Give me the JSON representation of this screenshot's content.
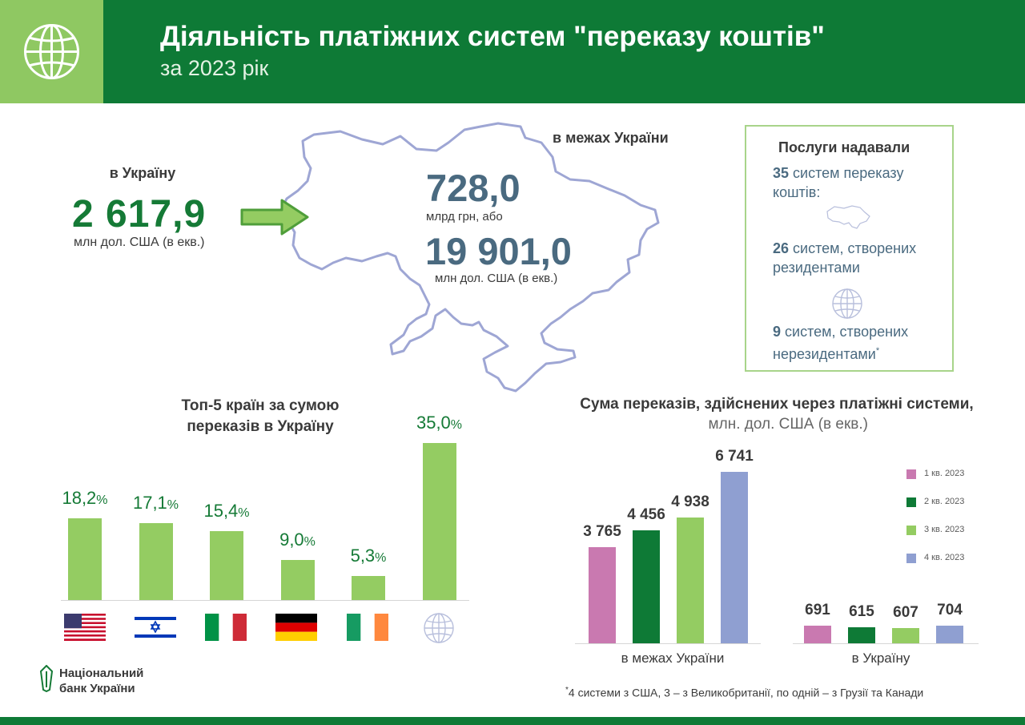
{
  "header": {
    "title": "Діяльність платіжних систем \"переказу коштів\"",
    "subtitle": "за 2023 рік",
    "icon": "globe-icon"
  },
  "to_ukraine": {
    "label": "в Україну",
    "value": "2 617,9",
    "unit": "млн дол. США (в екв.)"
  },
  "within_ukraine": {
    "label": "в межах України",
    "value_uah": "728,0",
    "unit_uah": "млрд грн, або",
    "value_usd": "19 901,0",
    "unit_usd": "млн дол. США (в екв.)"
  },
  "services": {
    "title": "Послуги надавали",
    "total_num": "35",
    "total_text": "систем переказу коштів:",
    "resident_num": "26",
    "resident_text": "систем, створених резидентами",
    "nonresident_num": "9",
    "nonresident_text": "систем, створених нерезидентами",
    "nonresident_mark": "*"
  },
  "colors": {
    "header_green": "#0e7a36",
    "light_green": "#94cc62",
    "q1": "#c979b0",
    "q2": "#0e7a36",
    "q3": "#94cc62",
    "q4": "#8f9fd1",
    "value_blue": "#4a6a80"
  },
  "chart_data": [
    {
      "type": "bar",
      "title": "Топ-5 країн за сумою переказів в Україну",
      "categories": [
        "USA",
        "Israel",
        "Italy",
        "Germany",
        "Ireland",
        "Other"
      ],
      "category_icons": [
        "flag-usa-icon",
        "flag-israel-icon",
        "flag-italy-icon",
        "flag-germany-icon",
        "flag-ireland-icon",
        "globe-icon"
      ],
      "values": [
        18.2,
        17.1,
        15.4,
        9.0,
        5.3,
        35.0
      ],
      "labels": [
        "18,2",
        "17,1",
        "15,4",
        "9,0",
        "5,3",
        "35,0"
      ],
      "unit": "%",
      "ylim": [
        0,
        35
      ]
    },
    {
      "type": "bar",
      "title": "Сума переказів, здійснених через платіжні системи,",
      "subtitle": "млн. дол. США (в екв.)",
      "categories": [
        "в межах України",
        "в Україну"
      ],
      "series": [
        {
          "name": "1 кв. 2023",
          "values": [
            3765,
            691
          ],
          "labels": [
            "3 765",
            "691"
          ]
        },
        {
          "name": "2 кв. 2023",
          "values": [
            4456,
            615
          ],
          "labels": [
            "4 456",
            "615"
          ]
        },
        {
          "name": "3 кв. 2023",
          "values": [
            4938,
            607
          ],
          "labels": [
            "4 938",
            "607"
          ]
        },
        {
          "name": "4 кв. 2023",
          "values": [
            6741,
            704
          ],
          "labels": [
            "6 741",
            "704"
          ]
        }
      ],
      "legend": "right",
      "ylim": [
        0,
        6741
      ]
    }
  ],
  "footnote": "4 системи з США, 3 – з Великобританії, по одній – з Грузії та Канади",
  "footnote_mark": "*",
  "nbu": {
    "line1": "Національний",
    "line2": "банк України"
  }
}
